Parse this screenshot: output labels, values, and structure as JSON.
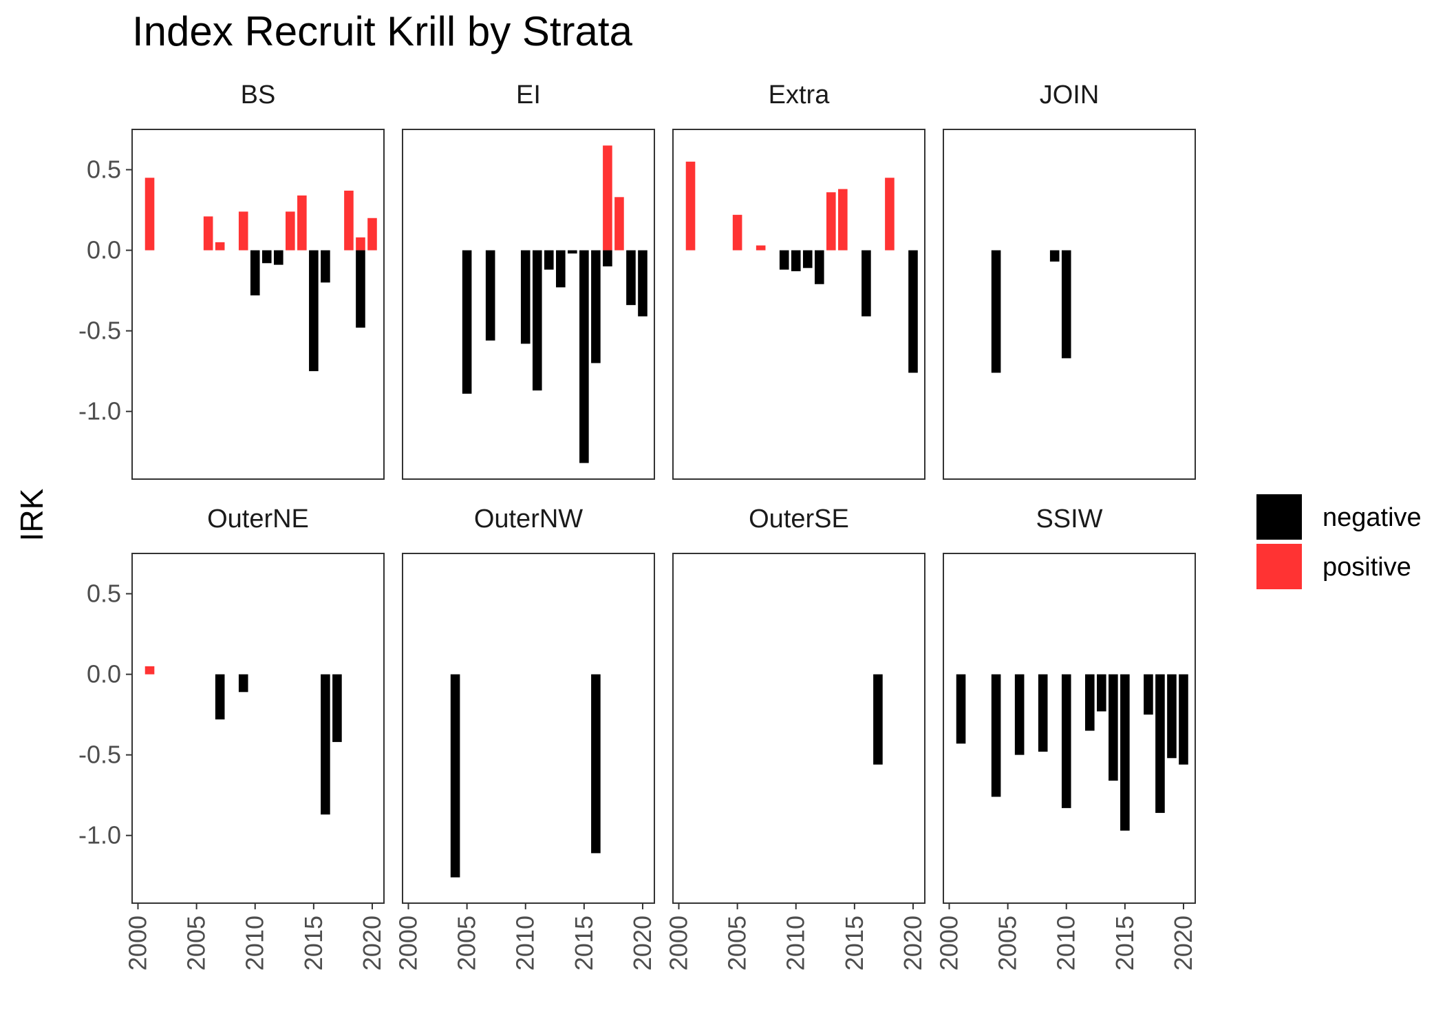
{
  "chart_data": {
    "type": "bar",
    "title": "Index Recruit Krill by Strata",
    "xlabel": "",
    "ylabel": "IRK",
    "xlim": [
      1999.5,
      2021.0
    ],
    "ylim": [
      -1.42,
      0.75
    ],
    "x_ticks": [
      2000,
      2005,
      2010,
      2015,
      2020
    ],
    "y_ticks": [
      0.5,
      0.0,
      -0.5,
      -1.0
    ],
    "y_tick_labels": [
      "0.5",
      "0.0",
      "-0.5",
      "-1.0"
    ],
    "x_tick_labels": [
      "2000",
      "2005",
      "2010",
      "2015",
      "2020"
    ],
    "grid": false,
    "legend": {
      "position": "right",
      "entries": [
        {
          "label": "negative",
          "color": "#000000"
        },
        {
          "label": "positive",
          "color": "#ff3333"
        }
      ]
    },
    "panels": [
      {
        "name": "BS",
        "points": [
          {
            "year": 2001,
            "value": 0.45
          },
          {
            "year": 2006,
            "value": 0.21
          },
          {
            "year": 2007,
            "value": 0.05
          },
          {
            "year": 2009,
            "value": 0.24
          },
          {
            "year": 2010,
            "value": -0.28
          },
          {
            "year": 2011,
            "value": -0.08
          },
          {
            "year": 2012,
            "value": -0.09
          },
          {
            "year": 2013,
            "value": 0.24
          },
          {
            "year": 2014,
            "value": 0.34
          },
          {
            "year": 2015,
            "value": -0.75
          },
          {
            "year": 2016,
            "value": -0.2
          },
          {
            "year": 2018,
            "value": 0.37
          },
          {
            "year": 2019,
            "value": 0.08
          },
          {
            "year": 2019,
            "value": -0.48
          },
          {
            "year": 2020,
            "value": 0.2
          }
        ]
      },
      {
        "name": "EI",
        "points": [
          {
            "year": 2005,
            "value": -0.89
          },
          {
            "year": 2007,
            "value": -0.56
          },
          {
            "year": 2010,
            "value": -0.58
          },
          {
            "year": 2011,
            "value": -0.87
          },
          {
            "year": 2012,
            "value": -0.12
          },
          {
            "year": 2013,
            "value": -0.23
          },
          {
            "year": 2014,
            "value": -0.02
          },
          {
            "year": 2015,
            "value": -1.32
          },
          {
            "year": 2016,
            "value": -0.7
          },
          {
            "year": 2017,
            "value": 0.65
          },
          {
            "year": 2017,
            "value": -0.1
          },
          {
            "year": 2018,
            "value": 0.33
          },
          {
            "year": 2019,
            "value": -0.34
          },
          {
            "year": 2020,
            "value": -0.41
          }
        ]
      },
      {
        "name": "Extra",
        "points": [
          {
            "year": 2001,
            "value": 0.55
          },
          {
            "year": 2005,
            "value": 0.22
          },
          {
            "year": 2007,
            "value": 0.03
          },
          {
            "year": 2009,
            "value": -0.12
          },
          {
            "year": 2010,
            "value": -0.13
          },
          {
            "year": 2011,
            "value": -0.11
          },
          {
            "year": 2012,
            "value": -0.21
          },
          {
            "year": 2013,
            "value": 0.36
          },
          {
            "year": 2014,
            "value": 0.38
          },
          {
            "year": 2016,
            "value": -0.41
          },
          {
            "year": 2018,
            "value": 0.45
          },
          {
            "year": 2020,
            "value": -0.76
          }
        ]
      },
      {
        "name": "JOIN",
        "points": [
          {
            "year": 2004,
            "value": -0.76
          },
          {
            "year": 2009,
            "value": -0.07
          },
          {
            "year": 2010,
            "value": -0.67
          }
        ]
      },
      {
        "name": "OuterNE",
        "points": [
          {
            "year": 2001,
            "value": 0.05
          },
          {
            "year": 2007,
            "value": -0.28
          },
          {
            "year": 2009,
            "value": -0.11
          },
          {
            "year": 2016,
            "value": -0.87
          },
          {
            "year": 2017,
            "value": -0.42
          }
        ]
      },
      {
        "name": "OuterNW",
        "points": [
          {
            "year": 2004,
            "value": -1.26
          },
          {
            "year": 2016,
            "value": -1.11
          }
        ]
      },
      {
        "name": "OuterSE",
        "points": [
          {
            "year": 2017,
            "value": -0.56
          }
        ]
      },
      {
        "name": "SSIW",
        "points": [
          {
            "year": 2001,
            "value": -0.43
          },
          {
            "year": 2004,
            "value": -0.76
          },
          {
            "year": 2006,
            "value": -0.5
          },
          {
            "year": 2008,
            "value": -0.48
          },
          {
            "year": 2010,
            "value": -0.83
          },
          {
            "year": 2012,
            "value": -0.35
          },
          {
            "year": 2013,
            "value": -0.23
          },
          {
            "year": 2014,
            "value": -0.66
          },
          {
            "year": 2015,
            "value": -0.97
          },
          {
            "year": 2017,
            "value": -0.25
          },
          {
            "year": 2018,
            "value": -0.86
          },
          {
            "year": 2019,
            "value": -0.52
          },
          {
            "year": 2020,
            "value": -0.56
          }
        ]
      }
    ]
  }
}
